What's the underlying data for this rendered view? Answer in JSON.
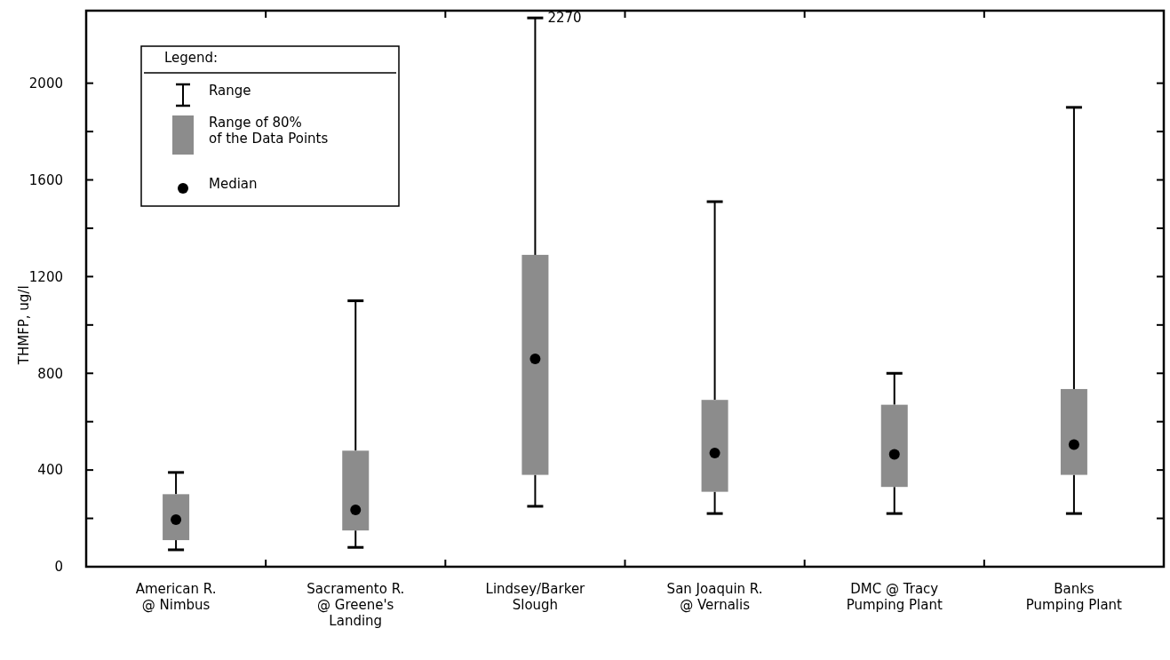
{
  "chart_data": {
    "type": "box",
    "ylabel": "THMFP, ug/l",
    "legend_title": "Legend:",
    "categories": [
      "American R.\n@ Nimbus",
      "Sacramento R.\n@ Greene's\nLanding",
      "Lindsey/Barker\nSlough",
      "San Joaquin R.\n@ Vernalis",
      "DMC @ Tracy\nPumping Plant",
      "Banks\nPumping Plant"
    ],
    "color": "#8c8c8c",
    "boxes": [
      {
        "low": 70,
        "q1": 110,
        "median": 195,
        "q3": 300,
        "high": 390
      },
      {
        "low": 80,
        "q1": 150,
        "median": 235,
        "q3": 480,
        "high": 1100
      },
      {
        "low": 250,
        "q1": 380,
        "median": 860,
        "q3": 1290,
        "high": 2270
      },
      {
        "low": 220,
        "q1": 310,
        "median": 470,
        "q3": 690,
        "high": 1510
      },
      {
        "low": 220,
        "q1": 330,
        "median": 465,
        "q3": 670,
        "high": 800
      },
      {
        "low": 220,
        "q1": 380,
        "median": 505,
        "q3": 735,
        "high": 1900
      }
    ],
    "ylim": [
      0,
      2300
    ],
    "yticks": [
      0,
      {
        "value": 200,
        "label": null
      },
      400,
      {
        "value": 600,
        "label": null
      },
      800,
      {
        "value": 1000,
        "label": null
      },
      1200,
      {
        "value": 1400,
        "label": null
      },
      1600,
      {
        "value": 1800,
        "label": null
      },
      2000
    ],
    "annotations": [
      "Range",
      "Range of 80%\nof the Data Points",
      "Median",
      {
        "text": "2270",
        "x": "Lindsey/Barker\nSlough",
        "y": 2270
      }
    ]
  }
}
